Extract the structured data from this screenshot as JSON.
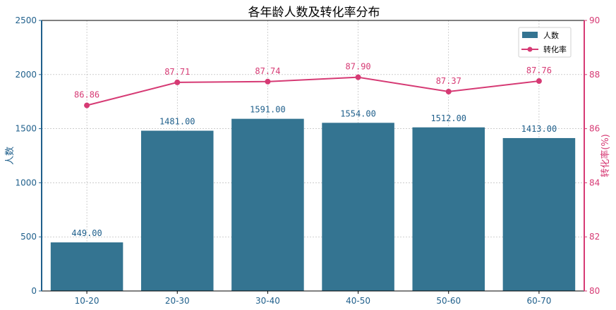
{
  "chart_data": {
    "type": "bar",
    "title": "各年龄人数及转化率分布",
    "categories": [
      "10-20",
      "20-30",
      "30-40",
      "40-50",
      "50-60",
      "60-70"
    ],
    "series": [
      {
        "name": "人数",
        "type": "bar",
        "axis": "left",
        "values": [
          449,
          1481,
          1591,
          1554,
          1512,
          1413
        ],
        "labels": [
          "449.00",
          "1481.00",
          "1591.00",
          "1554.00",
          "1512.00",
          "1413.00"
        ],
        "color": "#347491"
      },
      {
        "name": "转化率",
        "type": "line",
        "axis": "right",
        "values": [
          86.86,
          87.71,
          87.74,
          87.9,
          87.37,
          87.76
        ],
        "labels": [
          "86.86",
          "87.71",
          "87.74",
          "87.90",
          "87.37",
          "87.76"
        ],
        "color": "#d63a74"
      }
    ],
    "ylabel": "人数",
    "ylabel_right": "转化率(%)",
    "ylim": [
      0,
      2500
    ],
    "ylim_right": [
      80,
      90
    ],
    "yticks": [
      0,
      500,
      1000,
      1500,
      2000,
      2500
    ],
    "yticks_right": [
      80,
      82,
      84,
      86,
      88,
      90
    ],
    "grid": true,
    "legend_position": "top-right",
    "left_axis_color": "#1f5f8b",
    "right_axis_color": "#d63a74"
  }
}
